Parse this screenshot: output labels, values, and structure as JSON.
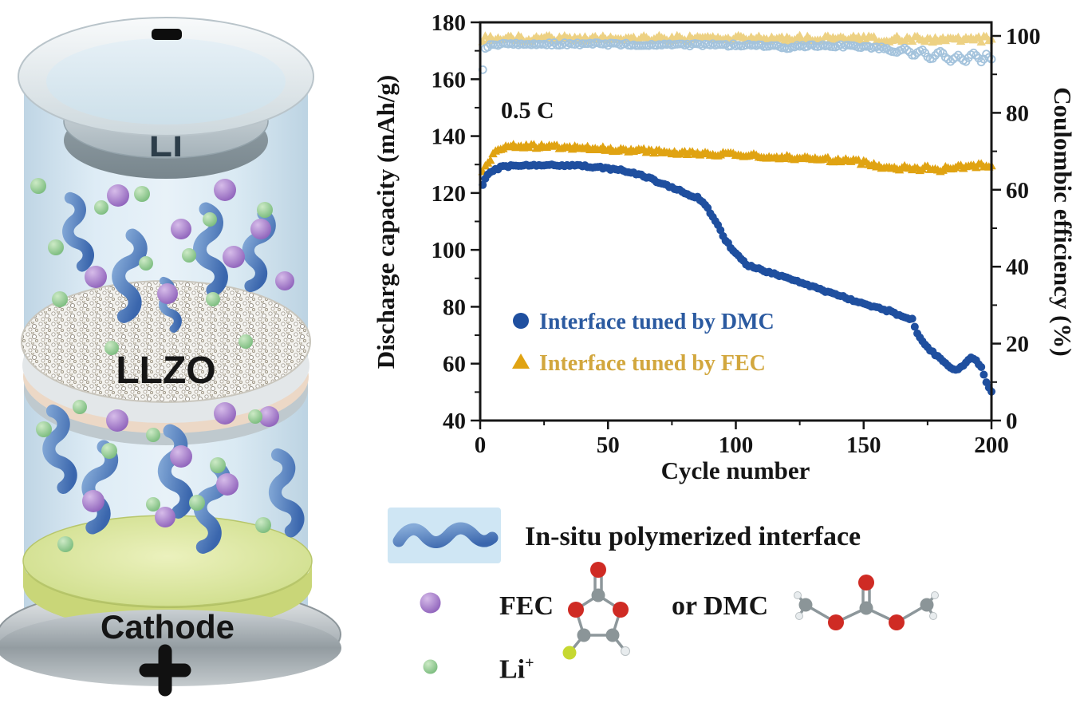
{
  "figure": {
    "background": "#ffffff",
    "diagram": {
      "name": "solid-state-battery-schematic",
      "anode_label": "Li",
      "electrolyte_label": "LLZO",
      "cathode_label": "Cathode",
      "icons": {
        "negative_terminal": "minus-icon",
        "positive_terminal": "plus-icon",
        "polymer_chain": "blue-squiggle",
        "fec_dmc_molecule": "purple-sphere",
        "li_ion": "green-sphere"
      },
      "colors": {
        "electrolyte_blue": "#d9e9f3",
        "polymer_blue": "#4d79b8",
        "fec_dmc_purple": "#8f63bd",
        "li_ion_green": "#7bbd7e",
        "cathode_green": "#cddd86",
        "li_disc_grey": "#a9b6bd"
      }
    },
    "chart_data": {
      "type": "scatter",
      "title": "",
      "annotation": "0.5 C",
      "xlabel": "Cycle number",
      "ylabel_left": "Discharge capacity (mAh/g)",
      "ylabel_right": "Coulombic efficiency (%)",
      "xlim": [
        0,
        200
      ],
      "ylim_left": [
        40,
        180
      ],
      "ylim_right": [
        0,
        100
      ],
      "x_major_ticks": [
        0,
        50,
        100,
        150,
        200
      ],
      "x_minor_ticks": [
        25,
        75,
        125,
        175
      ],
      "y_left_major_ticks": [
        40,
        60,
        80,
        100,
        120,
        140,
        160,
        180
      ],
      "y_left_minor_ticks": [
        50,
        70,
        90,
        110,
        130,
        150,
        170
      ],
      "y_right_major_ticks": [
        0,
        20,
        40,
        60,
        80,
        100
      ],
      "y_right_minor_ticks": [
        10,
        30,
        50,
        70,
        90
      ],
      "grid": false,
      "legend_position": "inside-left-middle",
      "legend": [
        {
          "label": "Interface tuned by DMC",
          "marker": "circle",
          "marker_color": "#1f4f9f",
          "text_color": "#2b5aa0"
        },
        {
          "label": "Interface tuned by FEC",
          "marker": "triangle",
          "marker_color": "#e0a312",
          "text_color": "#d2a73e"
        }
      ],
      "series": [
        {
          "name": "FEC coulombic efficiency",
          "axis": "right",
          "marker": "triangle",
          "fill": "#edd183",
          "size": 6,
          "jitter": 0.75,
          "points": [
            [
              1,
              99.2
            ],
            [
              30,
              99.4
            ],
            [
              70,
              99.3
            ],
            [
              110,
              99.4
            ],
            [
              150,
              99.2
            ],
            [
              170,
              99.1
            ],
            [
              185,
              99.0
            ],
            [
              200,
              99.2
            ]
          ]
        },
        {
          "name": "DMC coulombic efficiency",
          "axis": "right",
          "marker": "open-circle",
          "stroke": "#a4c3dc",
          "size": 4.5,
          "jitter": 0.35,
          "points": [
            [
              1,
              91
            ],
            [
              2,
              96.5
            ],
            [
              4,
              97.6
            ],
            [
              10,
              98
            ],
            [
              40,
              97.9
            ],
            [
              80,
              97.7
            ],
            [
              110,
              97.6
            ],
            [
              118,
              97.2
            ],
            [
              120,
              96.4
            ],
            [
              122,
              97.4
            ],
            [
              140,
              97.4
            ],
            [
              150,
              97.2
            ],
            [
              158,
              96.8
            ],
            [
              163,
              95.8
            ],
            [
              166,
              96.8
            ],
            [
              170,
              94.8
            ],
            [
              173,
              96.4
            ],
            [
              176,
              93.8
            ],
            [
              180,
              95.8
            ],
            [
              184,
              93.4
            ],
            [
              187,
              95.2
            ],
            [
              190,
              93.2
            ],
            [
              193,
              95.6
            ],
            [
              196,
              93.0
            ],
            [
              198,
              95.0
            ],
            [
              200,
              93.8
            ]
          ]
        },
        {
          "name": "FEC discharge capacity",
          "axis": "left",
          "marker": "triangle",
          "fill": "#e0a312",
          "size": 6,
          "jitter": 0.7,
          "points": [
            [
              1,
              127.5
            ],
            [
              3,
              131
            ],
            [
              6,
              134.5
            ],
            [
              10,
              136.3
            ],
            [
              25,
              136.4
            ],
            [
              50,
              135.4
            ],
            [
              75,
              134.4
            ],
            [
              100,
              133.3
            ],
            [
              125,
              132.3
            ],
            [
              145,
              131.3
            ],
            [
              152,
              130.4
            ],
            [
              158,
              129.2
            ],
            [
              163,
              128.6
            ],
            [
              167,
              129.4
            ],
            [
              171,
              128.2
            ],
            [
              175,
              128.9
            ],
            [
              179,
              128.1
            ],
            [
              184,
              128.9
            ],
            [
              190,
              129.3
            ],
            [
              200,
              129.9
            ]
          ]
        },
        {
          "name": "DMC discharge capacity",
          "axis": "left",
          "marker": "circle",
          "fill": "#1f4f9f",
          "size": 5,
          "jitter": 0.4,
          "points": [
            [
              1,
              123
            ],
            [
              2,
              125
            ],
            [
              4,
              127.5
            ],
            [
              8,
              129
            ],
            [
              15,
              129.8
            ],
            [
              25,
              130
            ],
            [
              35,
              129.7
            ],
            [
              45,
              129.2
            ],
            [
              55,
              128
            ],
            [
              62,
              126.5
            ],
            [
              68,
              124.5
            ],
            [
              75,
              122
            ],
            [
              80,
              120
            ],
            [
              85,
              118.5
            ],
            [
              88,
              116
            ],
            [
              92,
              110
            ],
            [
              96,
              103.5
            ],
            [
              100,
              98.5
            ],
            [
              104,
              95
            ],
            [
              108,
              93.5
            ],
            [
              115,
              91.5
            ],
            [
              125,
              88.5
            ],
            [
              135,
              85.5
            ],
            [
              145,
              82.5
            ],
            [
              152,
              80.5
            ],
            [
              160,
              78.5
            ],
            [
              166,
              76.5
            ],
            [
              169,
              75.5
            ],
            [
              171,
              71
            ],
            [
              173,
              67.5
            ],
            [
              175,
              65.5
            ],
            [
              177,
              64
            ],
            [
              179,
              62.5
            ],
            [
              182,
              60
            ],
            [
              184,
              58.5
            ],
            [
              187,
              58
            ],
            [
              190,
              60.5
            ],
            [
              192,
              62
            ],
            [
              194,
              61
            ],
            [
              196,
              58.5
            ],
            [
              198,
              53.5
            ],
            [
              200,
              50
            ]
          ]
        }
      ]
    },
    "legend_block": {
      "polymer_label": "In-situ polymerized interface",
      "fec_label": "FEC",
      "or_dmc_label": "or DMC",
      "li_label": "Li",
      "li_superscript": "+"
    }
  }
}
